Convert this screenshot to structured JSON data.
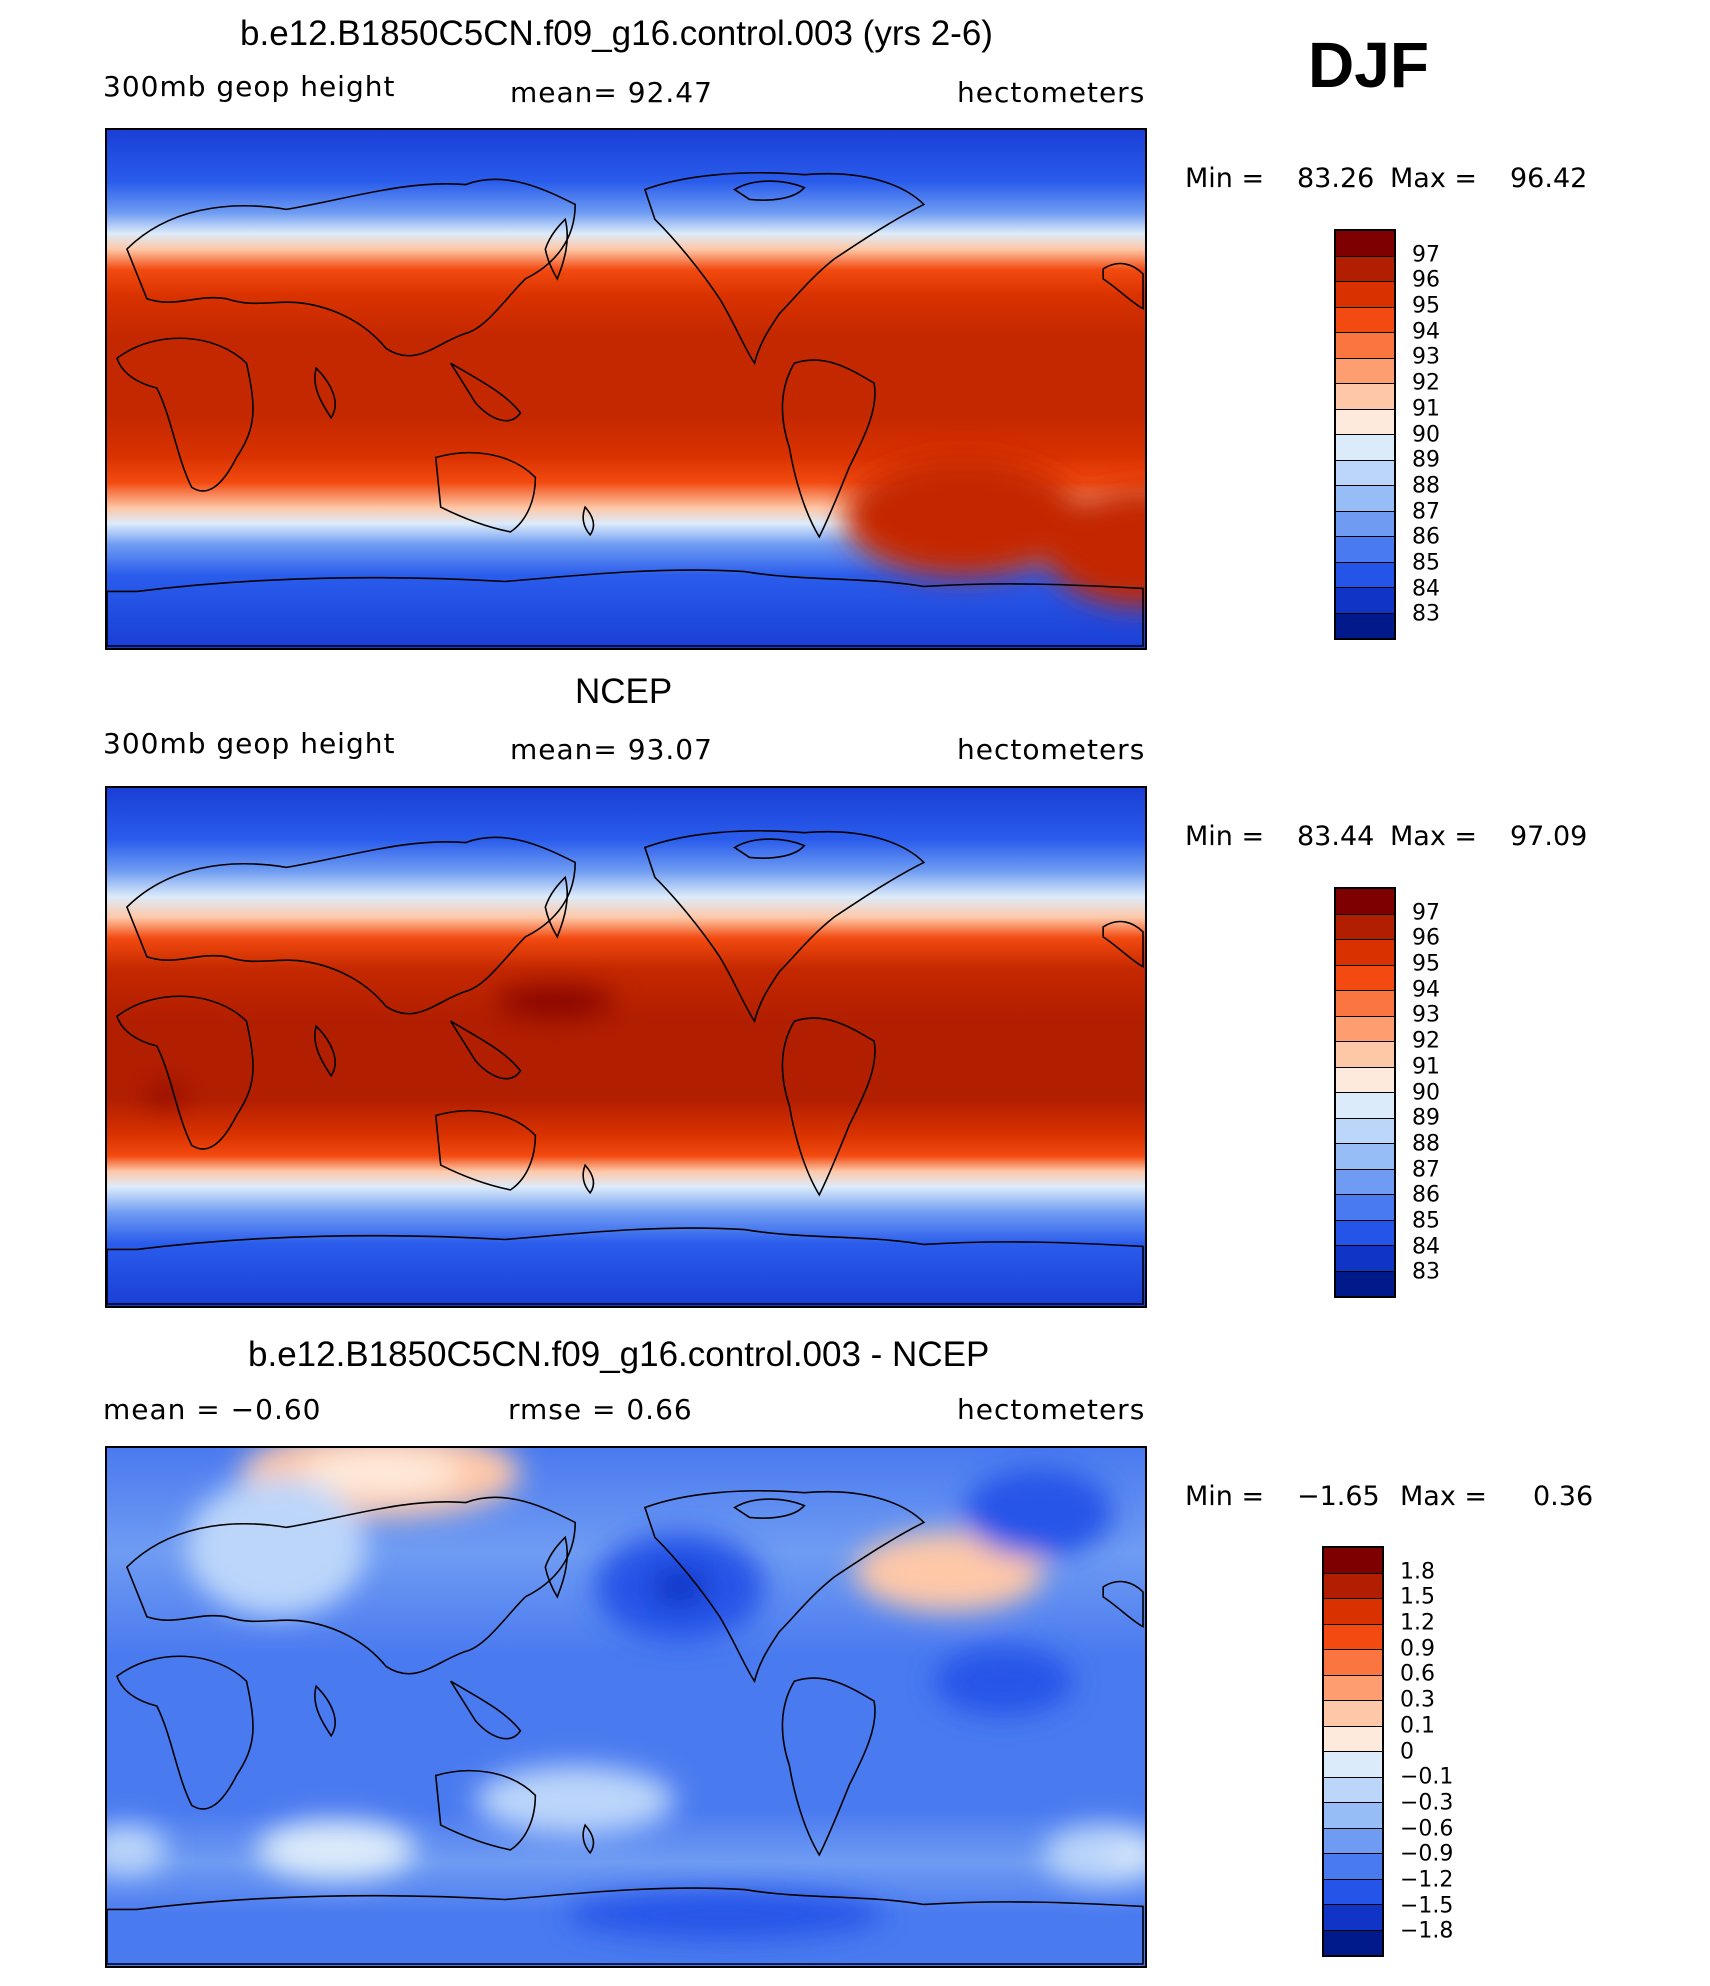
{
  "season": "DJF",
  "panels": [
    {
      "title": "b.e12.B1850C5CN.f09_g16.control.003 (yrs 2-6)",
      "left_label": "300mb  geop  height",
      "center_label": "mean=   92.47",
      "right_label": "hectometers",
      "min_label": "Min  =",
      "min_value": "83.26",
      "max_label": "Max  =",
      "max_value": "96.42",
      "field": "model"
    },
    {
      "title": "NCEP",
      "left_label": "300mb  geop  height",
      "center_label": "mean=   93.07",
      "right_label": "hectometers",
      "min_label": "Min  =",
      "min_value": "83.44",
      "max_label": "Max  =",
      "max_value": "97.09",
      "field": "obs"
    },
    {
      "title": "b.e12.B1850C5CN.f09_g16.control.003 - NCEP",
      "left_label": "mean  =    −0.60",
      "center_label": "rmse  =     0.66",
      "right_label": "hectometers",
      "min_label": "Min  =",
      "min_value": "−1.65",
      "max_label": "Max  =",
      "max_value": "0.36",
      "field": "diff"
    }
  ],
  "colorbar_abs": {
    "labels": [
      "97",
      "96",
      "95",
      "94",
      "93",
      "92",
      "91",
      "90",
      "89",
      "88",
      "87",
      "86",
      "85",
      "84",
      "83"
    ],
    "colors": [
      "#7f0000",
      "#b21e00",
      "#d93200",
      "#f24a10",
      "#fa7540",
      "#fd9d70",
      "#fec8a8",
      "#feeadc",
      "#dcebfa",
      "#bcd6fa",
      "#97bdf7",
      "#6f9cf2",
      "#4a7af0",
      "#2555e8",
      "#1034c6",
      "#001a8c"
    ]
  },
  "colorbar_diff": {
    "labels": [
      "1.8",
      "1.5",
      "1.2",
      "0.9",
      "0.6",
      "0.3",
      "0.1",
      "0",
      "−0.1",
      "−0.3",
      "−0.6",
      "−0.9",
      "−1.2",
      "−1.5",
      "−1.8"
    ],
    "colors": [
      "#7f0000",
      "#b21e00",
      "#d93200",
      "#f24a10",
      "#fa7540",
      "#fd9d70",
      "#fec8a8",
      "#feeadc",
      "#dcebfa",
      "#bcd6fa",
      "#97bdf7",
      "#6f9cf2",
      "#4a7af0",
      "#2555e8",
      "#1034c6",
      "#001a8c"
    ]
  }
}
